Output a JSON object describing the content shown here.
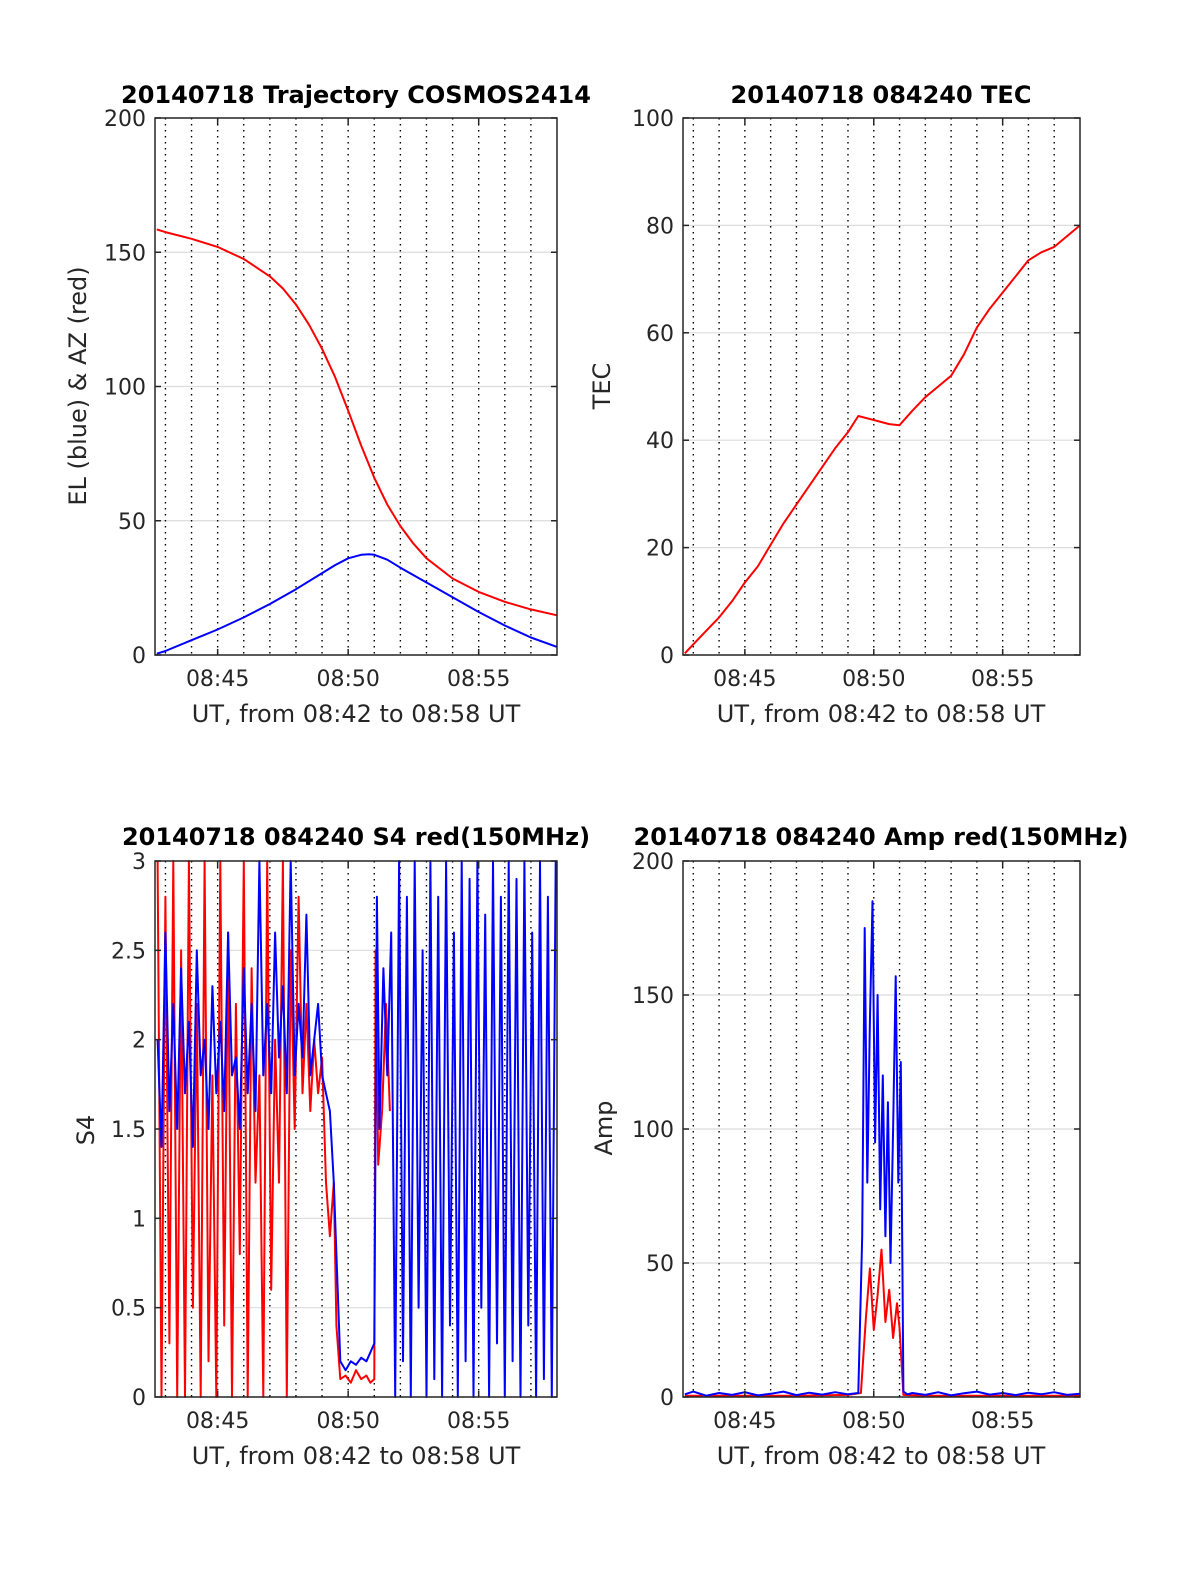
{
  "figure": {
    "background": "#ffffff",
    "grid": true,
    "series_colors": {
      "red": "#ff0000",
      "blue": "#0000ff"
    }
  },
  "chart_data": [
    {
      "id": "trajectory",
      "type": "line",
      "title": "20140718 Trajectory COSMOS2414",
      "xlabel": "UT, from 08:42 to 08:58 UT",
      "ylabel": "EL (blue) & AZ (red)",
      "xlim": [
        42.6,
        58.0
      ],
      "ylim": [
        0,
        200
      ],
      "x_ticks": [
        45,
        50,
        55
      ],
      "x_tick_labels": [
        "08:45",
        "08:50",
        "08:55"
      ],
      "y_ticks": [
        0,
        50,
        100,
        150,
        200
      ],
      "y_tick_labels": [
        "0",
        "50",
        "100",
        "150",
        "200"
      ],
      "series": [
        {
          "color": "#ff0000",
          "x": [
            42.67,
            43,
            44,
            45,
            46,
            47,
            47.5,
            48,
            48.5,
            49,
            49.5,
            50,
            50.5,
            51,
            51.5,
            52,
            52.5,
            53,
            54,
            55,
            56,
            57,
            58
          ],
          "y": [
            158.5,
            157.5,
            155,
            152,
            147.5,
            141,
            136.5,
            130.5,
            123,
            114,
            103.5,
            91,
            78,
            66,
            56,
            48,
            41.5,
            36,
            28.5,
            23.5,
            19.8,
            17,
            14.8
          ]
        },
        {
          "color": "#0000ff",
          "x": [
            42.67,
            43,
            44,
            45,
            46,
            47,
            48,
            49,
            49.5,
            50,
            50.5,
            50.8,
            51,
            51.5,
            52,
            53,
            54,
            55,
            56,
            57,
            58
          ],
          "y": [
            0.5,
            1.5,
            5.5,
            9.5,
            14,
            19,
            24.5,
            30.5,
            33.5,
            36,
            37.3,
            37.5,
            37.3,
            35.5,
            32.5,
            27,
            21.5,
            16,
            11,
            6.5,
            3
          ]
        }
      ]
    },
    {
      "id": "tec",
      "type": "line",
      "title": "20140718 084240 TEC",
      "xlabel": "UT, from 08:42 to 08:58 UT",
      "ylabel": "TEC",
      "xlim": [
        42.6,
        58.0
      ],
      "ylim": [
        0,
        100
      ],
      "x_ticks": [
        45,
        50,
        55
      ],
      "x_tick_labels": [
        "08:45",
        "08:50",
        "08:55"
      ],
      "y_ticks": [
        0,
        20,
        40,
        60,
        80,
        100
      ],
      "y_tick_labels": [
        "0",
        "20",
        "40",
        "60",
        "80",
        "100"
      ],
      "series": [
        {
          "color": "#ff0000",
          "x": [
            42.67,
            43,
            43.5,
            44,
            44.5,
            45,
            45.5,
            46,
            46.5,
            47,
            47.5,
            48,
            48.5,
            49,
            49.4,
            49.8,
            50.2,
            50.6,
            51.0,
            51.5,
            52,
            52.5,
            53,
            53.5,
            54,
            54.5,
            55,
            55.5,
            56,
            56.5,
            57,
            57.5,
            58
          ],
          "y": [
            0.3,
            2,
            4.5,
            7,
            10,
            13.5,
            16.5,
            20.5,
            24.5,
            28,
            31.5,
            35,
            38.5,
            41.5,
            44.5,
            44,
            43.5,
            43,
            42.8,
            45.5,
            48,
            50,
            52,
            56,
            61,
            64.5,
            67.5,
            70.5,
            73.5,
            75,
            76,
            78,
            80
          ]
        }
      ]
    },
    {
      "id": "s4",
      "type": "line",
      "title": "20140718 084240 S4 red(150MHz)",
      "xlabel": "UT, from 08:42 to 08:58 UT",
      "ylabel": "S4",
      "xlim": [
        42.6,
        58.0
      ],
      "ylim": [
        0,
        3
      ],
      "x_ticks": [
        45,
        50,
        55
      ],
      "x_tick_labels": [
        "08:45",
        "08:50",
        "08:55"
      ],
      "y_ticks": [
        0,
        0.5,
        1,
        1.5,
        2,
        2.5,
        3
      ],
      "y_tick_labels": [
        "0",
        "0.5",
        "1",
        "1.5",
        "2",
        "2.5",
        "3"
      ],
      "series": [
        {
          "color": "#ff0000",
          "x": [
            42.7,
            42.85,
            43.0,
            43.15,
            43.3,
            43.45,
            43.6,
            43.75,
            43.9,
            44.05,
            44.2,
            44.35,
            44.5,
            44.65,
            44.8,
            44.95,
            45.1,
            45.25,
            45.4,
            45.55,
            45.7,
            45.85,
            46.0,
            46.15,
            46.3,
            46.45,
            46.6,
            46.75,
            46.9,
            47.05,
            47.2,
            47.35,
            47.5,
            47.65,
            47.8,
            47.95,
            48.1,
            48.25,
            48.4,
            48.55,
            48.7,
            48.85,
            49.0,
            49.15,
            49.3,
            49.45,
            49.55,
            49.7,
            49.9,
            50.1,
            50.3,
            50.5,
            50.7,
            50.85,
            51.0,
            51.05,
            51.15,
            51.3,
            51.45,
            51.6
          ],
          "y": [
            3,
            0,
            2.8,
            0.3,
            3,
            0,
            2.5,
            0,
            3,
            0.5,
            2.2,
            0,
            3,
            0.2,
            1.8,
            0,
            3,
            0.4,
            2.6,
            0,
            2.2,
            0.8,
            3,
            0,
            2.4,
            1.2,
            1.8,
            0,
            3,
            0.6,
            2.0,
            1.2,
            3,
            0,
            2.5,
            1.5,
            2.8,
            1.7,
            2.2,
            1.6,
            2.0,
            1.7,
            1.9,
            1.2,
            0.9,
            1.2,
            0.4,
            0.1,
            0.12,
            0.08,
            0.15,
            0.1,
            0.12,
            0.08,
            0.1,
            2.5,
            1.3,
            1.6,
            2.2,
            1.6
          ]
        },
        {
          "color": "#0000ff",
          "x": [
            42.7,
            42.85,
            43.0,
            43.15,
            43.3,
            43.45,
            43.6,
            43.75,
            43.9,
            44.05,
            44.2,
            44.35,
            44.5,
            44.65,
            44.8,
            44.95,
            45.1,
            45.25,
            45.4,
            45.55,
            45.7,
            45.85,
            46.0,
            46.15,
            46.3,
            46.45,
            46.6,
            46.75,
            46.9,
            47.05,
            47.2,
            47.35,
            47.5,
            47.65,
            47.8,
            47.95,
            48.1,
            48.25,
            48.4,
            48.55,
            48.7,
            48.85,
            49.0,
            49.15,
            49.3,
            49.45,
            49.55,
            49.7,
            49.9,
            50.1,
            50.3,
            50.5,
            50.7,
            50.85,
            51.0,
            51.1,
            51.2,
            51.35,
            51.5,
            51.65,
            51.8,
            51.95,
            52.1,
            52.25,
            52.4,
            52.55,
            52.7,
            52.85,
            53.0,
            53.15,
            53.3,
            53.45,
            53.6,
            53.75,
            53.9,
            54.05,
            54.2,
            54.35,
            54.5,
            54.65,
            54.8,
            54.95,
            55.1,
            55.25,
            55.4,
            55.55,
            55.7,
            55.85,
            56.0,
            56.15,
            56.3,
            56.45,
            56.6,
            56.75,
            56.9,
            57.05,
            57.2,
            57.35,
            57.5,
            57.65,
            57.8,
            57.95
          ],
          "y": [
            2.0,
            1.4,
            2.6,
            1.6,
            2.2,
            1.5,
            2.4,
            1.7,
            2.1,
            1.4,
            2.5,
            1.8,
            2.0,
            1.5,
            2.3,
            1.7,
            2.1,
            1.6,
            2.6,
            1.8,
            1.9,
            1.5,
            2.4,
            1.7,
            2.2,
            1.6,
            3.0,
            1.8,
            2.2,
            1.7,
            2.6,
            1.9,
            2.3,
            1.7,
            3.0,
            1.8,
            2.2,
            1.9,
            2.7,
            1.8,
            2.0,
            2.2,
            1.8,
            1.7,
            1.6,
            1.2,
            0.8,
            0.2,
            0.15,
            0.2,
            0.18,
            0.22,
            0.2,
            0.25,
            0.3,
            2.8,
            1.5,
            2.4,
            1.8,
            2.6,
            0,
            3,
            0.2,
            2.8,
            0,
            3,
            0.5,
            2.5,
            0,
            3,
            0.1,
            2.8,
            0,
            3,
            0.4,
            2.6,
            0,
            3,
            0.2,
            2.9,
            0,
            3,
            0.5,
            2.7,
            0,
            3,
            0.3,
            2.8,
            0,
            3,
            0.2,
            2.9,
            0,
            3,
            0.4,
            2.6,
            0,
            3,
            0.1,
            2.8,
            0,
            3
          ]
        }
      ]
    },
    {
      "id": "amp",
      "type": "line",
      "title": "20140718 084240 Amp red(150MHz)",
      "xlabel": "UT, from 08:42 to 08:58 UT",
      "ylabel": "Amp",
      "xlim": [
        42.6,
        58.0
      ],
      "ylim": [
        0,
        200
      ],
      "x_ticks": [
        45,
        50,
        55
      ],
      "x_tick_labels": [
        "08:45",
        "08:50",
        "08:55"
      ],
      "y_ticks": [
        0,
        50,
        100,
        150,
        200
      ],
      "y_tick_labels": [
        "0",
        "50",
        "100",
        "150",
        "200"
      ],
      "series": [
        {
          "color": "#ff0000",
          "x": [
            42.67,
            45,
            47,
            49.0,
            49.5,
            49.7,
            49.85,
            50.0,
            50.15,
            50.3,
            50.45,
            50.6,
            50.75,
            50.9,
            51.0,
            51.15,
            52,
            55,
            58
          ],
          "y": [
            0.5,
            0.5,
            0.5,
            0.8,
            1.5,
            30,
            48,
            25,
            38,
            55,
            28,
            40,
            22,
            35,
            26,
            0.8,
            0.5,
            0.5,
            0.5
          ]
        },
        {
          "color": "#0000ff",
          "x": [
            42.67,
            43,
            43.5,
            44,
            44.5,
            45,
            45.5,
            46,
            46.5,
            47,
            47.5,
            48,
            48.5,
            49,
            49.4,
            49.55,
            49.65,
            49.75,
            49.85,
            49.95,
            50.05,
            50.15,
            50.25,
            50.35,
            50.45,
            50.55,
            50.65,
            50.75,
            50.85,
            50.95,
            51.05,
            51.15,
            51.3,
            51.5,
            52,
            52.5,
            53,
            53.5,
            54,
            54.5,
            55,
            55.5,
            56,
            56.5,
            57,
            57.5,
            58
          ],
          "y": [
            1.0,
            2.0,
            0.5,
            1.5,
            0.8,
            1.8,
            0.6,
            1.2,
            2.0,
            0.7,
            1.6,
            0.9,
            1.8,
            1.0,
            1.5,
            60,
            175,
            80,
            140,
            185,
            95,
            150,
            70,
            120,
            60,
            110,
            50,
            100,
            157,
            80,
            125,
            2.0,
            1.0,
            1.5,
            0.8,
            1.8,
            0.6,
            1.4,
            2.0,
            0.9,
            1.5,
            0.7,
            1.6,
            1.0,
            1.8,
            0.8,
            1.2
          ]
        }
      ]
    }
  ]
}
